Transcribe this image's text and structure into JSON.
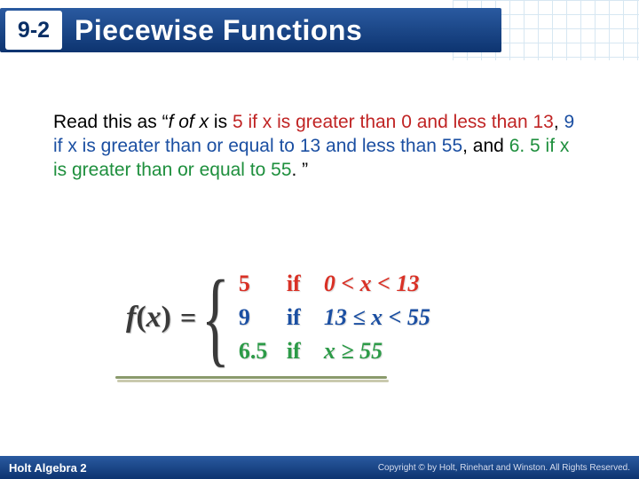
{
  "header": {
    "section_number": "9-2",
    "title": "Piecewise Functions",
    "title_bar_gradient": [
      "#2a5aa0",
      "#0d3470"
    ],
    "badge_bg": "#ffffff",
    "badge_text_color": "#0a2f66",
    "grid_color": "#b8d4e8"
  },
  "body": {
    "intro": "Read this as “",
    "fof_text": "f of x",
    "is_text": " is ",
    "case1_text": "5 if x is greater than 0 and less than 13",
    "sep": ", ",
    "case2_text": "9 if x is greater than or equal to 13 and less than 55",
    "sep2": ", and ",
    "case3_text": "6. 5 if x is greater than or equal to 55",
    "close": ". ”",
    "colors": {
      "case1": "#c02424",
      "case2": "#1b4fa2",
      "case3": "#1e8f3d",
      "text": "#000000"
    },
    "fontsize": 21
  },
  "formula": {
    "lhs": "f(x)",
    "eq": "=",
    "cases": [
      {
        "value": "5",
        "if": "if",
        "cond": "0 < x < 13",
        "color": "#d93126"
      },
      {
        "value": "9",
        "if": "if",
        "cond": "13 ≤ x < 55",
        "color": "#1b4fa2"
      },
      {
        "value": "6.5",
        "if": "if",
        "cond": "x ≥ 55",
        "color": "#2c9a47"
      }
    ],
    "brace_color": "#3a3a3a",
    "fontsize": 26,
    "underline_colors": [
      "#8a9a6b",
      "#c9c9ae"
    ]
  },
  "footer": {
    "left": "Holt Algebra 2",
    "right": "Copyright © by Holt, Rinehart and Winston. All Rights Reserved.",
    "gradient": [
      "#2a5aa0",
      "#0d3470"
    ]
  }
}
